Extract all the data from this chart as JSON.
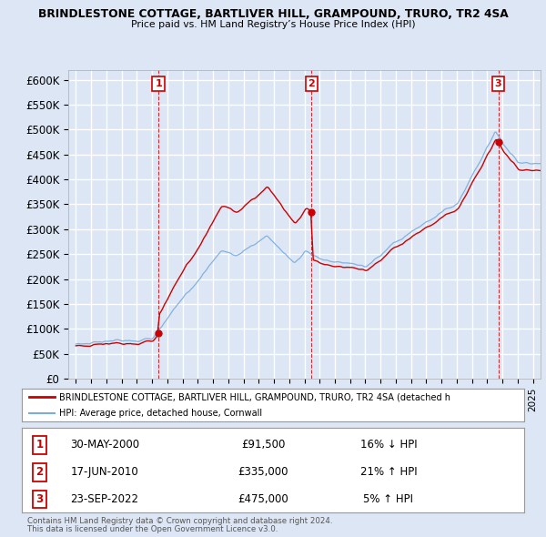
{
  "title": "BRINDLESTONE COTTAGE, BARTLIVER HILL, GRAMPOUND, TRURO, TR2 4SA",
  "subtitle": "Price paid vs. HM Land Registry’s House Price Index (HPI)",
  "ylim": [
    0,
    620000
  ],
  "yticks": [
    0,
    50000,
    100000,
    150000,
    200000,
    250000,
    300000,
    350000,
    400000,
    450000,
    500000,
    550000,
    600000
  ],
  "ytick_labels": [
    "£0",
    "£50K",
    "£100K",
    "£150K",
    "£200K",
    "£250K",
    "£300K",
    "£350K",
    "£400K",
    "£450K",
    "£500K",
    "£550K",
    "£600K"
  ],
  "xlim_start": 1994.5,
  "xlim_end": 2025.5,
  "background_color": "#dce6f5",
  "plot_bg_color": "#dce6f5",
  "grid_color": "#ffffff",
  "hpi_color": "#7aacdc",
  "price_color": "#cc0000",
  "sale_marker_color": "#cc0000",
  "transactions": [
    {
      "num": 1,
      "date": "30-MAY-2000",
      "year": 2000.42,
      "price": 91500,
      "hpi_rel": "16% ↓ HPI"
    },
    {
      "num": 2,
      "date": "17-JUN-2010",
      "year": 2010.46,
      "price": 335000,
      "hpi_rel": "21% ↑ HPI"
    },
    {
      "num": 3,
      "date": "23-SEP-2022",
      "year": 2022.73,
      "price": 475000,
      "hpi_rel": "5% ↑ HPI"
    }
  ],
  "legend_price_label": "BRINDLESTONE COTTAGE, BARTLIVER HILL, GRAMPOUND, TRURO, TR2 4SA (detached h",
  "legend_hpi_label": "HPI: Average price, detached house, Cornwall",
  "footer1": "Contains HM Land Registry data © Crown copyright and database right 2024.",
  "footer2": "This data is licensed under the Open Government Licence v3.0.",
  "table_rows": [
    {
      "num": 1,
      "date": "30-MAY-2000",
      "price": "£91,500",
      "hpi": "16% ↓ HPI"
    },
    {
      "num": 2,
      "date": "17-JUN-2010",
      "price": "£335,000",
      "hpi": "21% ↑ HPI"
    },
    {
      "num": 3,
      "date": "23-SEP-2022",
      "price": "£475,000",
      "hpi": "5% ↑ HPI"
    }
  ]
}
